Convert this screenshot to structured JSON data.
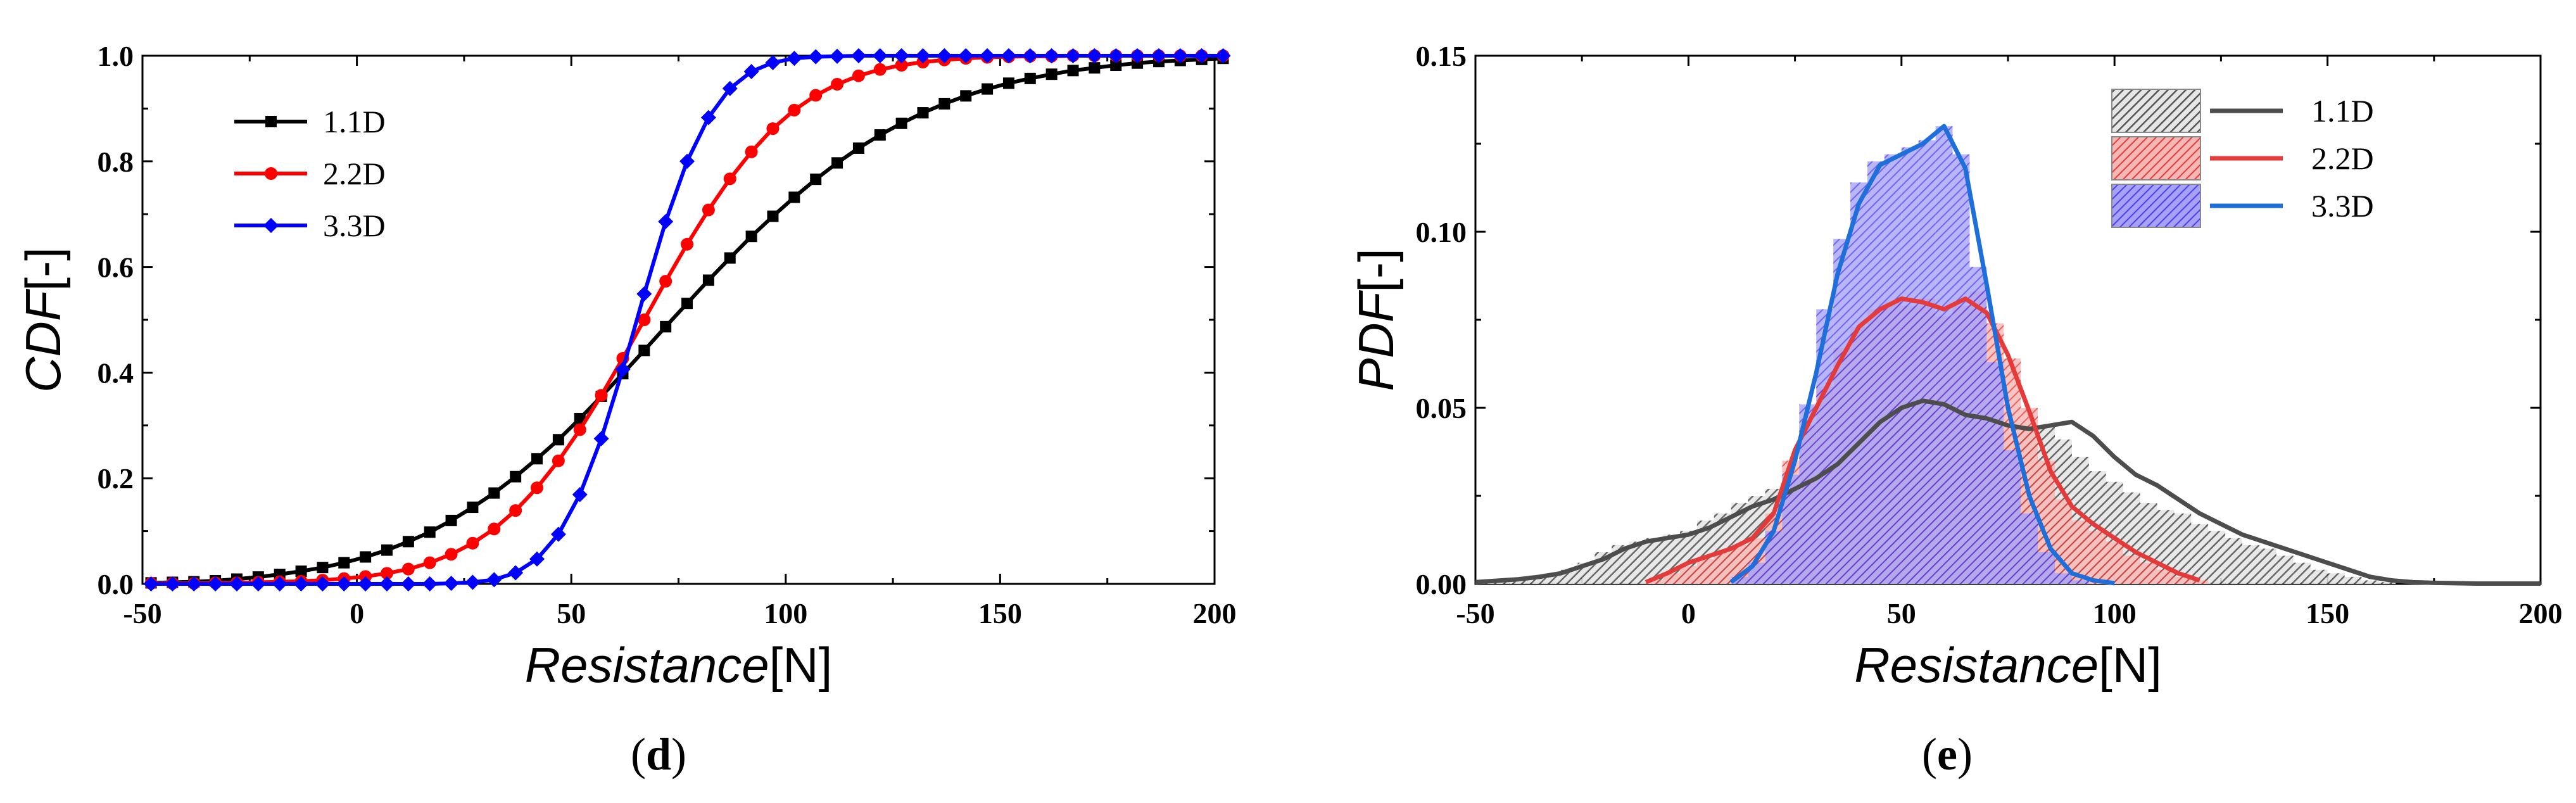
{
  "colors": {
    "d_series": [
      "#000000",
      "#ff0000",
      "#0000ff"
    ],
    "e_line": [
      "#4d4d4d",
      "#e53a3a",
      "#1f6fdb"
    ],
    "e_bar": [
      "#5c5c5c",
      "#e8413e",
      "#4a3ff0"
    ]
  },
  "chart_data": [
    {
      "id": "d",
      "type": "line",
      "caption": "d",
      "xlabel_italic": "Resistance",
      "xlabel_unit": "[N]",
      "ylabel_italic": "CDF",
      "ylabel_unit": "[-]",
      "xlim": [
        -50,
        200
      ],
      "ylim": [
        0,
        1
      ],
      "xticks": [
        -50,
        0,
        50,
        100,
        150,
        200
      ],
      "yticks": [
        0.0,
        0.2,
        0.4,
        0.6,
        0.8,
        1.0
      ],
      "ytick_labels": [
        "0.0",
        "0.2",
        "0.4",
        "0.6",
        "0.8",
        "1.0"
      ],
      "legend_position": "upper-left",
      "series": [
        {
          "name": "1.1D",
          "marker": "square",
          "x_start": -48,
          "x_step": 5,
          "y": [
            0.002,
            0.003,
            0.004,
            0.006,
            0.009,
            0.013,
            0.018,
            0.024,
            0.031,
            0.04,
            0.051,
            0.064,
            0.08,
            0.098,
            0.12,
            0.145,
            0.172,
            0.203,
            0.237,
            0.273,
            0.313,
            0.355,
            0.398,
            0.442,
            0.487,
            0.531,
            0.575,
            0.617,
            0.658,
            0.696,
            0.732,
            0.766,
            0.797,
            0.825,
            0.85,
            0.872,
            0.892,
            0.909,
            0.924,
            0.937,
            0.948,
            0.957,
            0.965,
            0.972,
            0.977,
            0.982,
            0.986,
            0.989,
            0.991,
            0.993,
            0.995
          ]
        },
        {
          "name": "2.2D",
          "marker": "circle",
          "x_start": -48,
          "x_step": 5,
          "y": [
            0.001,
            0.001,
            0.001,
            0.002,
            0.002,
            0.003,
            0.004,
            0.005,
            0.007,
            0.01,
            0.014,
            0.02,
            0.028,
            0.04,
            0.056,
            0.077,
            0.104,
            0.139,
            0.182,
            0.233,
            0.292,
            0.357,
            0.427,
            0.5,
            0.573,
            0.643,
            0.708,
            0.767,
            0.818,
            0.862,
            0.897,
            0.925,
            0.946,
            0.962,
            0.974,
            0.982,
            0.988,
            0.992,
            0.995,
            0.997,
            0.998,
            0.999,
            0.999,
            1.0,
            1.0,
            1.0,
            1.0,
            1.0,
            1.0,
            1.0,
            1.0
          ]
        },
        {
          "name": "3.3D",
          "marker": "diamond",
          "x_start": -48,
          "x_step": 5,
          "y": [
            0.0,
            0.0,
            0.0,
            0.0,
            0.0,
            0.0,
            0.0,
            0.0,
            0.0,
            0.0,
            0.0,
            0.0,
            0.0,
            0.0,
            0.001,
            0.003,
            0.008,
            0.021,
            0.047,
            0.094,
            0.169,
            0.275,
            0.406,
            0.549,
            0.686,
            0.8,
            0.883,
            0.938,
            0.97,
            0.987,
            0.995,
            0.998,
            0.999,
            1.0,
            1.0,
            1.0,
            1.0,
            1.0,
            1.0,
            1.0,
            1.0,
            1.0,
            1.0,
            1.0,
            1.0,
            1.0,
            1.0,
            1.0,
            1.0,
            1.0,
            1.0
          ]
        }
      ]
    },
    {
      "id": "e",
      "type": "bar",
      "caption": "e",
      "xlabel_italic": "Resistance",
      "xlabel_unit": "[N]",
      "ylabel_italic": "PDF",
      "ylabel_unit": "[-]",
      "xlim": [
        -50,
        200
      ],
      "ylim": [
        0,
        0.15
      ],
      "xticks": [
        -50,
        0,
        50,
        100,
        150,
        200
      ],
      "yticks": [
        0.0,
        0.05,
        0.1,
        0.15
      ],
      "ytick_labels": [
        "0.00",
        "0.05",
        "0.10",
        "0.15"
      ],
      "legend_position": "upper-right",
      "bin_width": 4,
      "series": [
        {
          "name": "1.1D",
          "x": [
            -48,
            -44,
            -40,
            -36,
            -32,
            -28,
            -24,
            -20,
            -16,
            -12,
            -8,
            -4,
            0,
            4,
            8,
            12,
            16,
            20,
            24,
            28,
            32,
            36,
            40,
            44,
            48,
            52,
            56,
            60,
            64,
            68,
            72,
            76,
            80,
            84,
            88,
            92,
            96,
            100,
            104,
            108,
            112,
            116,
            120,
            124,
            128,
            132,
            136,
            140,
            144,
            148,
            152,
            156,
            160,
            164
          ],
          "values": [
            0.0005,
            0.001,
            0.0013,
            0.002,
            0.003,
            0.004,
            0.006,
            0.009,
            0.011,
            0.012,
            0.013,
            0.014,
            0.015,
            0.018,
            0.02,
            0.023,
            0.025,
            0.027,
            0.03,
            0.033,
            0.037,
            0.042,
            0.046,
            0.05,
            0.052,
            0.052,
            0.05,
            0.048,
            0.047,
            0.046,
            0.044,
            0.043,
            0.045,
            0.045,
            0.041,
            0.036,
            0.032,
            0.029,
            0.026,
            0.023,
            0.021,
            0.02,
            0.017,
            0.015,
            0.013,
            0.011,
            0.01,
            0.008,
            0.006,
            0.004,
            0.003,
            0.002,
            0.001,
            0.0005
          ]
        },
        {
          "name": "2.2D",
          "x": [
            -8,
            -4,
            0,
            4,
            8,
            12,
            16,
            20,
            24,
            28,
            32,
            36,
            40,
            44,
            48,
            52,
            56,
            60,
            64,
            68,
            72,
            76,
            80,
            84,
            88,
            92,
            96,
            100,
            104,
            108,
            112,
            116,
            120
          ],
          "values": [
            0.001,
            0.003,
            0.005,
            0.007,
            0.009,
            0.011,
            0.013,
            0.02,
            0.035,
            0.045,
            0.056,
            0.067,
            0.073,
            0.078,
            0.08,
            0.079,
            0.081,
            0.076,
            0.079,
            0.083,
            0.074,
            0.064,
            0.05,
            0.035,
            0.024,
            0.018,
            0.015,
            0.012,
            0.008,
            0.006,
            0.004,
            0.002,
            0.001
          ]
        },
        {
          "name": "3.3D",
          "x": [
            12,
            16,
            20,
            24,
            28,
            32,
            36,
            40,
            44,
            48,
            52,
            56,
            60,
            64,
            68,
            72,
            76,
            80,
            84,
            88,
            92
          ],
          "values": [
            0.002,
            0.006,
            0.015,
            0.031,
            0.051,
            0.078,
            0.098,
            0.114,
            0.12,
            0.122,
            0.124,
            0.126,
            0.13,
            0.122,
            0.09,
            0.063,
            0.038,
            0.02,
            0.009,
            0.003,
            0.001
          ]
        }
      ],
      "curves": [
        {
          "name": "1.1D",
          "x": [
            -50,
            -45,
            -40,
            -35,
            -30,
            -25,
            -20,
            -15,
            -10,
            -5,
            0,
            5,
            10,
            15,
            20,
            25,
            30,
            35,
            40,
            45,
            50,
            55,
            60,
            65,
            70,
            75,
            80,
            85,
            90,
            95,
            100,
            105,
            110,
            115,
            120,
            125,
            130,
            135,
            140,
            145,
            150,
            155,
            160,
            165,
            170,
            175,
            180,
            185,
            190,
            195,
            200
          ],
          "y": [
            0.0005,
            0.0009,
            0.0013,
            0.002,
            0.003,
            0.005,
            0.007,
            0.01,
            0.012,
            0.013,
            0.014,
            0.016,
            0.019,
            0.022,
            0.024,
            0.027,
            0.03,
            0.034,
            0.04,
            0.046,
            0.05,
            0.052,
            0.051,
            0.048,
            0.047,
            0.045,
            0.044,
            0.045,
            0.046,
            0.042,
            0.036,
            0.031,
            0.028,
            0.024,
            0.02,
            0.017,
            0.014,
            0.012,
            0.01,
            0.008,
            0.006,
            0.004,
            0.002,
            0.001,
            0.0005,
            0.0003,
            0.0002,
            0.0001,
            0.0001,
            0.0001,
            0.0001
          ]
        },
        {
          "name": "2.2D",
          "x": [
            -10,
            -5,
            0,
            5,
            10,
            15,
            20,
            25,
            30,
            35,
            40,
            45,
            50,
            55,
            60,
            65,
            70,
            75,
            80,
            85,
            90,
            95,
            100,
            105,
            110,
            115,
            120
          ],
          "y": [
            0.0005,
            0.003,
            0.006,
            0.008,
            0.01,
            0.013,
            0.02,
            0.038,
            0.05,
            0.062,
            0.073,
            0.078,
            0.081,
            0.08,
            0.078,
            0.081,
            0.077,
            0.065,
            0.049,
            0.032,
            0.022,
            0.017,
            0.013,
            0.009,
            0.006,
            0.003,
            0.001
          ]
        },
        {
          "name": "3.3D",
          "x": [
            10,
            15,
            20,
            25,
            30,
            35,
            40,
            45,
            50,
            55,
            60,
            65,
            70,
            75,
            80,
            85,
            90,
            95,
            100
          ],
          "y": [
            0.0005,
            0.005,
            0.015,
            0.035,
            0.06,
            0.088,
            0.108,
            0.119,
            0.122,
            0.125,
            0.13,
            0.118,
            0.085,
            0.05,
            0.025,
            0.01,
            0.003,
            0.001,
            0.0002
          ]
        }
      ]
    }
  ]
}
